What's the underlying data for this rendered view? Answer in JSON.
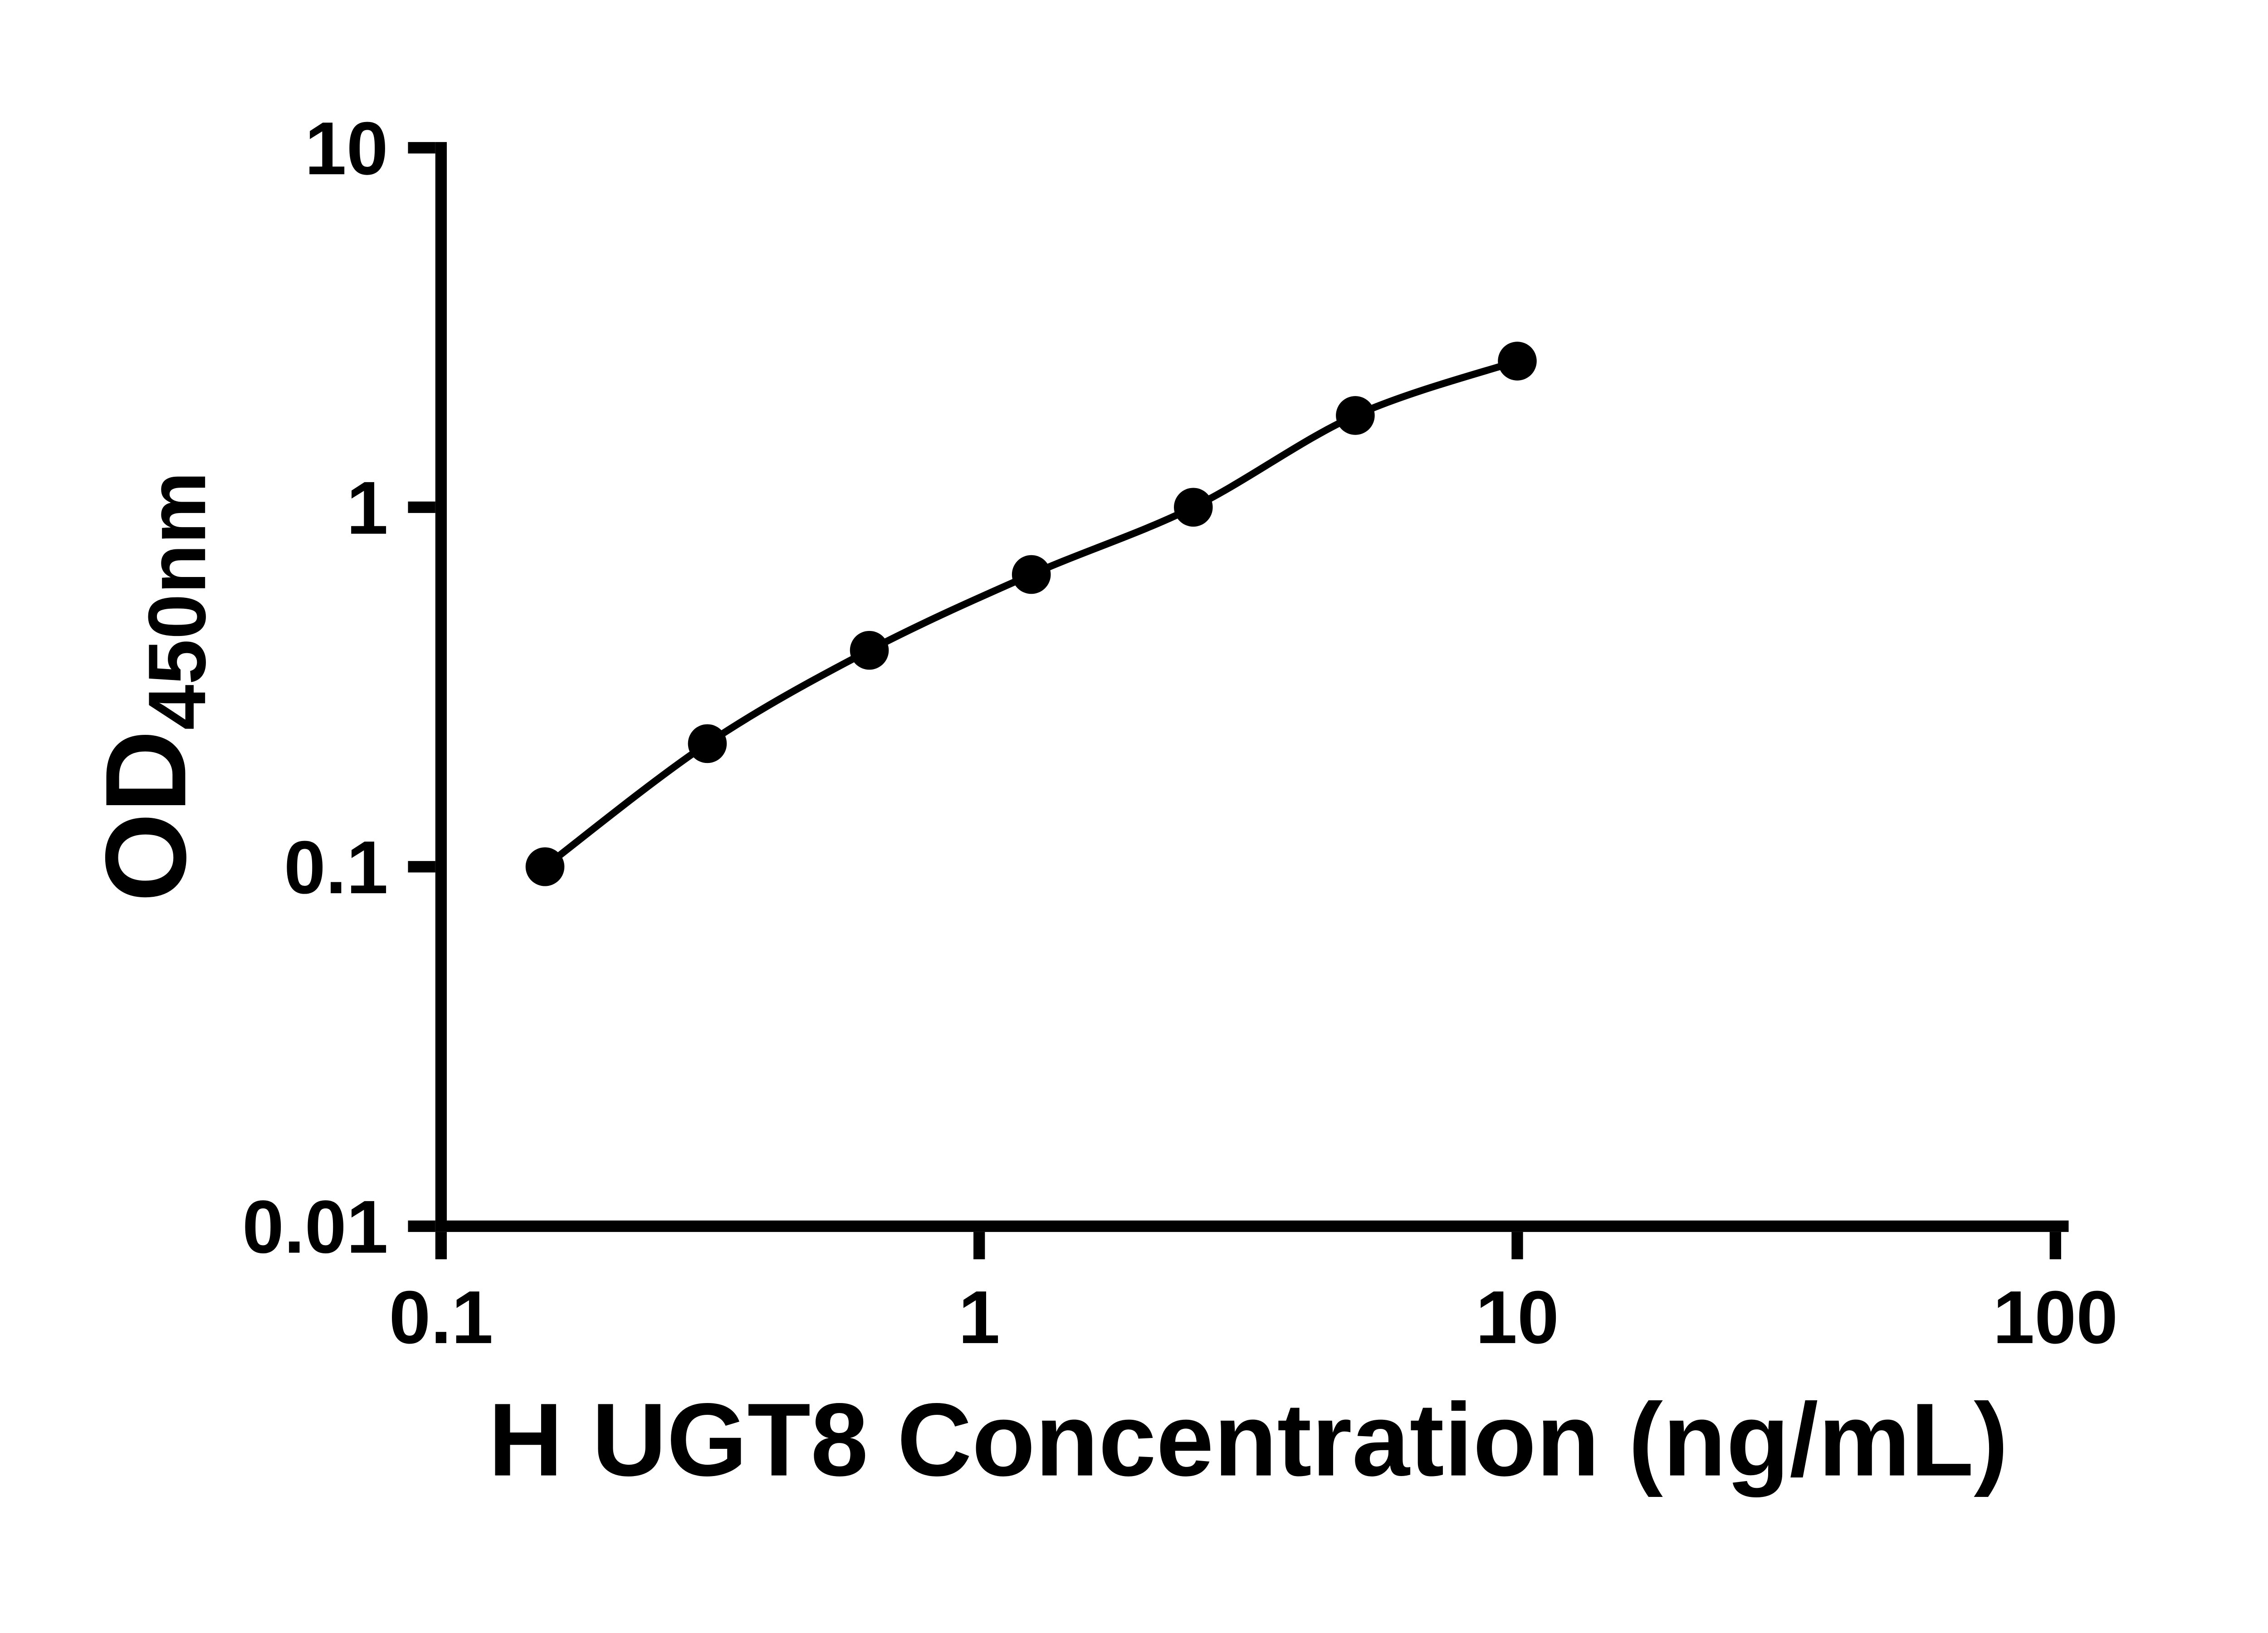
{
  "chart_data": {
    "type": "scatter",
    "title": "",
    "xlabel": "H UGT8 Concentration (ng/mL)",
    "ylabel_main": "OD",
    "ylabel_sub": "450nm",
    "x_scale": "log",
    "y_scale": "log",
    "xlim": [
      0.1,
      100
    ],
    "ylim": [
      0.01,
      10
    ],
    "x_tick_values": [
      0.1,
      1,
      10,
      100
    ],
    "x_tick_labels": [
      "0.1",
      "1",
      "10",
      "100"
    ],
    "y_tick_values": [
      0.01,
      0.1,
      1,
      10
    ],
    "y_tick_labels": [
      "0.01",
      "0.1",
      "1",
      "10"
    ],
    "grid": false,
    "legend": "none",
    "axis_color": "#000000",
    "background": "#ffffff",
    "series": [
      {
        "marker": "circle",
        "color": "#000000",
        "line": "smooth",
        "points": [
          {
            "x": 0.156,
            "y": 0.1
          },
          {
            "x": 0.3125,
            "y": 0.22
          },
          {
            "x": 0.625,
            "y": 0.4
          },
          {
            "x": 1.25,
            "y": 0.65
          },
          {
            "x": 2.5,
            "y": 1.0
          },
          {
            "x": 5,
            "y": 1.8
          },
          {
            "x": 10,
            "y": 2.55
          }
        ]
      }
    ]
  }
}
